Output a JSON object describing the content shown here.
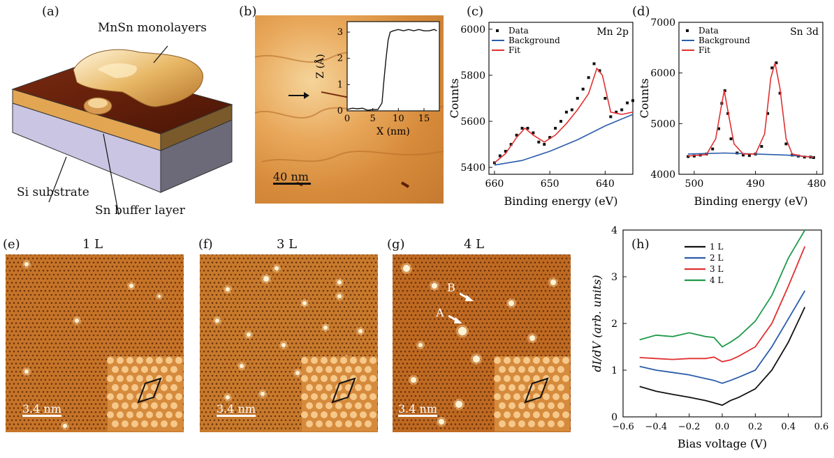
{
  "panels": {
    "a": {
      "label": "(a)",
      "top_label": "MnSn monolayers",
      "substrate_label": "Si substrate",
      "buffer_label": "Sn buffer layer"
    },
    "b": {
      "label": "(b)",
      "scale_bar": "40 nm",
      "inset": {
        "xlabel": "X (nm)",
        "ylabel": "Z (Å)",
        "xticks": [
          "0",
          "5",
          "10",
          "15"
        ],
        "yticks": [
          "0",
          "1",
          "2",
          "3"
        ]
      }
    },
    "c": {
      "label": "(c)",
      "annotation": "Mn 2p"
    },
    "d": {
      "label": "(d)",
      "annotation": "Sn 3d"
    },
    "e": {
      "label": "(e)",
      "title": "1 L",
      "scale_bar": "3.4 nm"
    },
    "f": {
      "label": "(f)",
      "title": "3 L",
      "scale_bar": "3.4 nm"
    },
    "g": {
      "label": "(g)",
      "title": "4 L",
      "scale_bar": "3.4 nm",
      "markers": [
        "A",
        "B"
      ]
    },
    "h": {
      "label": "(h)"
    }
  },
  "chart_data": [
    {
      "id": "b-inset",
      "type": "line",
      "xlabel": "X (nm)",
      "ylabel": "Z (Å)",
      "xlim": [
        0,
        18
      ],
      "ylim": [
        0,
        3.4
      ],
      "x": [
        0,
        1,
        2,
        3,
        4,
        5,
        6,
        6.8,
        7.2,
        7.6,
        8.0,
        8.4,
        9,
        10,
        11,
        12,
        13,
        14,
        15,
        16,
        17,
        17.5
      ],
      "y": [
        0.05,
        0.1,
        0.08,
        0.1,
        0.02,
        0.05,
        0.05,
        0.3,
        1.2,
        2.0,
        2.7,
        3.0,
        3.05,
        3.1,
        3.05,
        3.1,
        3.05,
        3.1,
        3.05,
        3.05,
        3.1,
        3.05
      ]
    },
    {
      "id": "c",
      "type": "scatter",
      "xlabel": "Binding energy (eV)",
      "ylabel": "Counts",
      "xlim": [
        661,
        635
      ],
      "ylim": [
        5370,
        6030
      ],
      "xticks": [
        "660",
        "650",
        "640"
      ],
      "yticks": [
        "5400",
        "5600",
        "5800",
        "6000"
      ],
      "legend": [
        "Data",
        "Background",
        "Fit"
      ],
      "series": [
        {
          "name": "Data",
          "x": [
            660,
            659,
            658,
            657,
            656,
            655,
            654,
            653,
            652,
            651,
            650,
            649,
            648,
            647,
            646,
            645,
            644,
            643,
            642,
            641,
            640,
            639,
            638,
            637,
            636,
            635
          ],
          "y": [
            5420,
            5450,
            5470,
            5500,
            5540,
            5570,
            5570,
            5550,
            5510,
            5500,
            5530,
            5570,
            5600,
            5640,
            5650,
            5700,
            5740,
            5790,
            5850,
            5820,
            5700,
            5620,
            5640,
            5650,
            5680,
            5690
          ]
        },
        {
          "name": "Background",
          "x": [
            660,
            655,
            650,
            645,
            640,
            635
          ],
          "y": [
            5410,
            5430,
            5470,
            5520,
            5580,
            5630
          ]
        },
        {
          "name": "Fit",
          "x": [
            660,
            658,
            656,
            654.5,
            653,
            651,
            649,
            647,
            645,
            643,
            641.5,
            640.5,
            639,
            637,
            635
          ],
          "y": [
            5420,
            5460,
            5530,
            5570,
            5540,
            5510,
            5540,
            5590,
            5650,
            5720,
            5830,
            5800,
            5640,
            5630,
            5640
          ]
        }
      ]
    },
    {
      "id": "d",
      "type": "scatter",
      "xlabel": "Binding energy (eV)",
      "ylabel": "Counts",
      "xlim": [
        502.5,
        479
      ],
      "ylim": [
        4000,
        7000
      ],
      "xticks": [
        "500",
        "490",
        "480"
      ],
      "yticks": [
        "4000",
        "5000",
        "6000",
        "7000"
      ],
      "legend": [
        "Data",
        "Background",
        "Fit"
      ],
      "series": [
        {
          "name": "Data",
          "x": [
            501,
            500,
            499,
            498,
            497,
            496,
            495.5,
            495,
            494.5,
            494,
            493,
            492,
            491,
            490,
            489,
            488,
            487.3,
            486.6,
            486,
            485,
            484,
            483,
            482,
            481,
            480.5
          ],
          "y": [
            4350,
            4360,
            4380,
            4400,
            4500,
            4900,
            5400,
            5650,
            5200,
            4700,
            4420,
            4380,
            4370,
            4400,
            4550,
            5200,
            6100,
            6200,
            5600,
            4600,
            4380,
            4360,
            4340,
            4340,
            4330
          ]
        },
        {
          "name": "Background",
          "x": [
            501,
            495,
            490,
            485,
            480.5
          ],
          "y": [
            4400,
            4420,
            4400,
            4380,
            4340
          ]
        },
        {
          "name": "Fit",
          "x": [
            501,
            498,
            496.5,
            495.5,
            495.1,
            494.5,
            493.5,
            492,
            490,
            488.5,
            487.5,
            486.8,
            486,
            485,
            484,
            482,
            480.5
          ],
          "y": [
            4360,
            4390,
            4700,
            5400,
            5650,
            5250,
            4600,
            4400,
            4400,
            4800,
            5900,
            6200,
            5700,
            4700,
            4400,
            4350,
            4340
          ]
        }
      ]
    },
    {
      "id": "h",
      "type": "line",
      "xlabel": "Bias voltage (V)",
      "ylabel": "dI/dV (arb. units)",
      "xlim": [
        -0.6,
        0.6
      ],
      "ylim": [
        0,
        4
      ],
      "xticks": [
        "−0.6",
        "−0.4",
        "−0.2",
        "0.0",
        "0.2",
        "0.4",
        "0.6"
      ],
      "yticks": [
        "0",
        "1",
        "2",
        "3",
        "4"
      ],
      "legend": [
        "1 L",
        "2 L",
        "3 L",
        "4 L"
      ],
      "colors": [
        "#111111",
        "#2a5caa",
        "#e03030",
        "#1f9a4a"
      ],
      "x": [
        -0.5,
        -0.4,
        -0.3,
        -0.2,
        -0.1,
        -0.05,
        0.0,
        0.05,
        0.1,
        0.2,
        0.3,
        0.4,
        0.5
      ],
      "series": [
        {
          "name": "1 L",
          "values": [
            0.65,
            0.55,
            0.48,
            0.42,
            0.35,
            0.3,
            0.25,
            0.35,
            0.42,
            0.6,
            1.0,
            1.6,
            2.35
          ]
        },
        {
          "name": "2 L",
          "values": [
            1.08,
            1.0,
            0.95,
            0.9,
            0.82,
            0.78,
            0.72,
            0.78,
            0.85,
            1.0,
            1.5,
            2.1,
            2.7
          ]
        },
        {
          "name": "3 L",
          "values": [
            1.27,
            1.25,
            1.23,
            1.25,
            1.25,
            1.28,
            1.18,
            1.22,
            1.3,
            1.5,
            2.0,
            2.8,
            3.65
          ]
        },
        {
          "name": "4 L",
          "values": [
            1.65,
            1.75,
            1.72,
            1.8,
            1.72,
            1.7,
            1.5,
            1.6,
            1.72,
            2.05,
            2.6,
            3.4,
            4.0
          ]
        }
      ]
    }
  ]
}
